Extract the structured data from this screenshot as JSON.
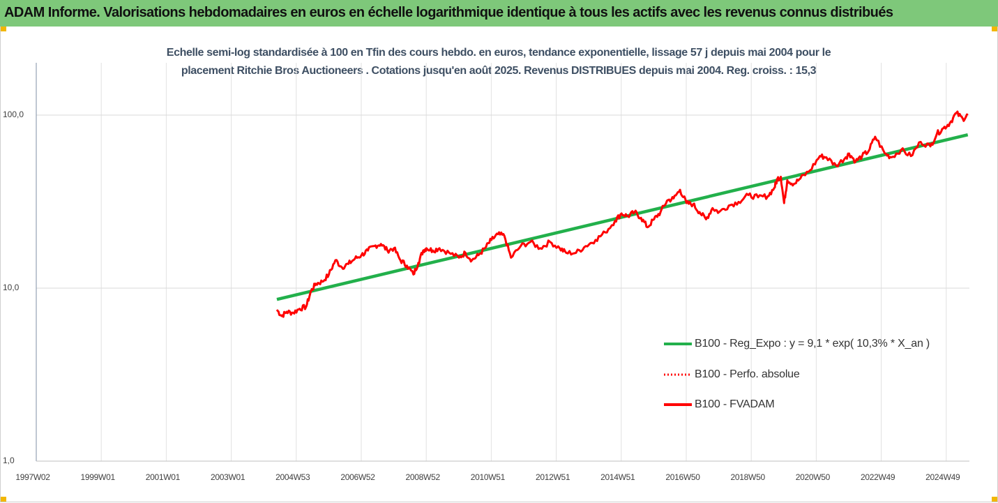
{
  "header": {
    "title": "ADAM Informe. Valorisations hebdomadaires en euros en échelle logarithmique identique à tous les actifs avec les revenus connus distribués"
  },
  "subtitle": {
    "line1": "Echelle semi-log standardisée à 100 en Tfin des cours hebdo. en euros, tendance exponentielle, lissage 57 j depuis mai 2004 pour le",
    "line2": "placement Ritchie Bros Auctioneers . Cotations jusqu'en août 2025. Revenus DISTRIBUES depuis mai 2004. Reg. croiss. : 15,3"
  },
  "colors": {
    "header_bg": "#7ec87a",
    "trend": "#22b04b",
    "price": "#ff0000",
    "grid": "#d9d9d9",
    "corner": "#f2b705"
  },
  "chart_data": {
    "type": "line",
    "y_scale": "log",
    "ylim": [
      1,
      200
    ],
    "y_ticks": [
      "100,0",
      "10,0",
      "1,0"
    ],
    "x_ticks": [
      "1997W02",
      "1999W01",
      "2001W01",
      "2003W01",
      "2004W53",
      "2006W52",
      "2008W52",
      "2010W51",
      "2012W51",
      "2014W51",
      "2016W50",
      "2018W50",
      "2020W50",
      "2022W49",
      "2024W49"
    ],
    "xlim": [
      1997.0,
      2025.7
    ],
    "grid": "vertical and horizontal",
    "legend_position": "lower-right",
    "series": [
      {
        "name": "B100 - Reg_Expo : y = 9,1 * exp( 10,3% *  X_an )",
        "style": "solid-thick",
        "color": "#22b04b",
        "x": [
          2004.4,
          2025.65
        ],
        "y": [
          8.6,
          77.0
        ]
      },
      {
        "name": "B100 - Perfo. absolue",
        "style": "dotted",
        "color": "#ff0000",
        "x": [],
        "y": []
      },
      {
        "name": "B100 - FVADAM",
        "style": "solid-thick",
        "color": "#ff0000",
        "x": [
          2004.4,
          2004.55,
          2004.7,
          2004.9,
          2005.1,
          2005.3,
          2005.45,
          2005.6,
          2005.8,
          2006.0,
          2006.2,
          2006.4,
          2006.6,
          2006.8,
          2007.0,
          2007.2,
          2007.4,
          2007.6,
          2007.8,
          2008.0,
          2008.2,
          2008.4,
          2008.6,
          2008.75,
          2008.9,
          2009.0,
          2009.2,
          2009.4,
          2009.7,
          2010.0,
          2010.2,
          2010.4,
          2010.6,
          2010.8,
          2011.0,
          2011.2,
          2011.4,
          2011.6,
          2011.9,
          2012.2,
          2012.5,
          2012.8,
          2013.1,
          2013.3,
          2013.6,
          2013.9,
          2014.2,
          2014.5,
          2014.8,
          2015.0,
          2015.2,
          2015.4,
          2015.6,
          2015.8,
          2016.0,
          2016.2,
          2016.4,
          2016.6,
          2016.8,
          2017.0,
          2017.2,
          2017.4,
          2017.6,
          2017.8,
          2018.0,
          2018.3,
          2018.6,
          2018.9,
          2019.2,
          2019.5,
          2019.7,
          2019.8,
          2019.9,
          2020.0,
          2020.1,
          2020.3,
          2020.5,
          2020.8,
          2021.1,
          2021.3,
          2021.6,
          2021.9,
          2022.0,
          2022.2,
          2022.4,
          2022.6,
          2022.8,
          2023.1,
          2023.3,
          2023.6,
          2023.9,
          2024.2,
          2024.5,
          2024.7,
          2024.9,
          2025.1,
          2025.3,
          2025.5,
          2025.65
        ],
        "y": [
          7.5,
          6.9,
          7.3,
          7.2,
          7.6,
          7.8,
          9.6,
          10.6,
          10.9,
          12.0,
          14.5,
          13.2,
          13.8,
          14.8,
          15.5,
          16.5,
          17.5,
          18.0,
          16.5,
          17.0,
          14.5,
          13.5,
          12.0,
          14.0,
          16.5,
          17.0,
          16.5,
          17.0,
          16.0,
          15.0,
          16.0,
          14.5,
          15.5,
          17.0,
          19.0,
          20.5,
          20.0,
          15.0,
          17.5,
          18.5,
          17.0,
          18.5,
          17.0,
          16.0,
          16.0,
          17.5,
          19.0,
          21.0,
          24.5,
          27.0,
          26.0,
          27.5,
          25.5,
          22.5,
          25.0,
          27.5,
          32.0,
          33.0,
          37.0,
          31.0,
          30.5,
          27.5,
          25.0,
          29.0,
          27.5,
          30.0,
          31.5,
          34.5,
          33.5,
          34.0,
          38.0,
          43.0,
          44.0,
          31.0,
          42.0,
          40.0,
          43.0,
          48.0,
          58.0,
          57.0,
          51.0,
          57.0,
          60.0,
          54.0,
          58.0,
          62.0,
          75.0,
          60.0,
          57.0,
          63.0,
          58.0,
          70.0,
          66.0,
          78.0,
          84.0,
          90.0,
          103.0,
          95.0,
          100.0
        ]
      }
    ]
  }
}
